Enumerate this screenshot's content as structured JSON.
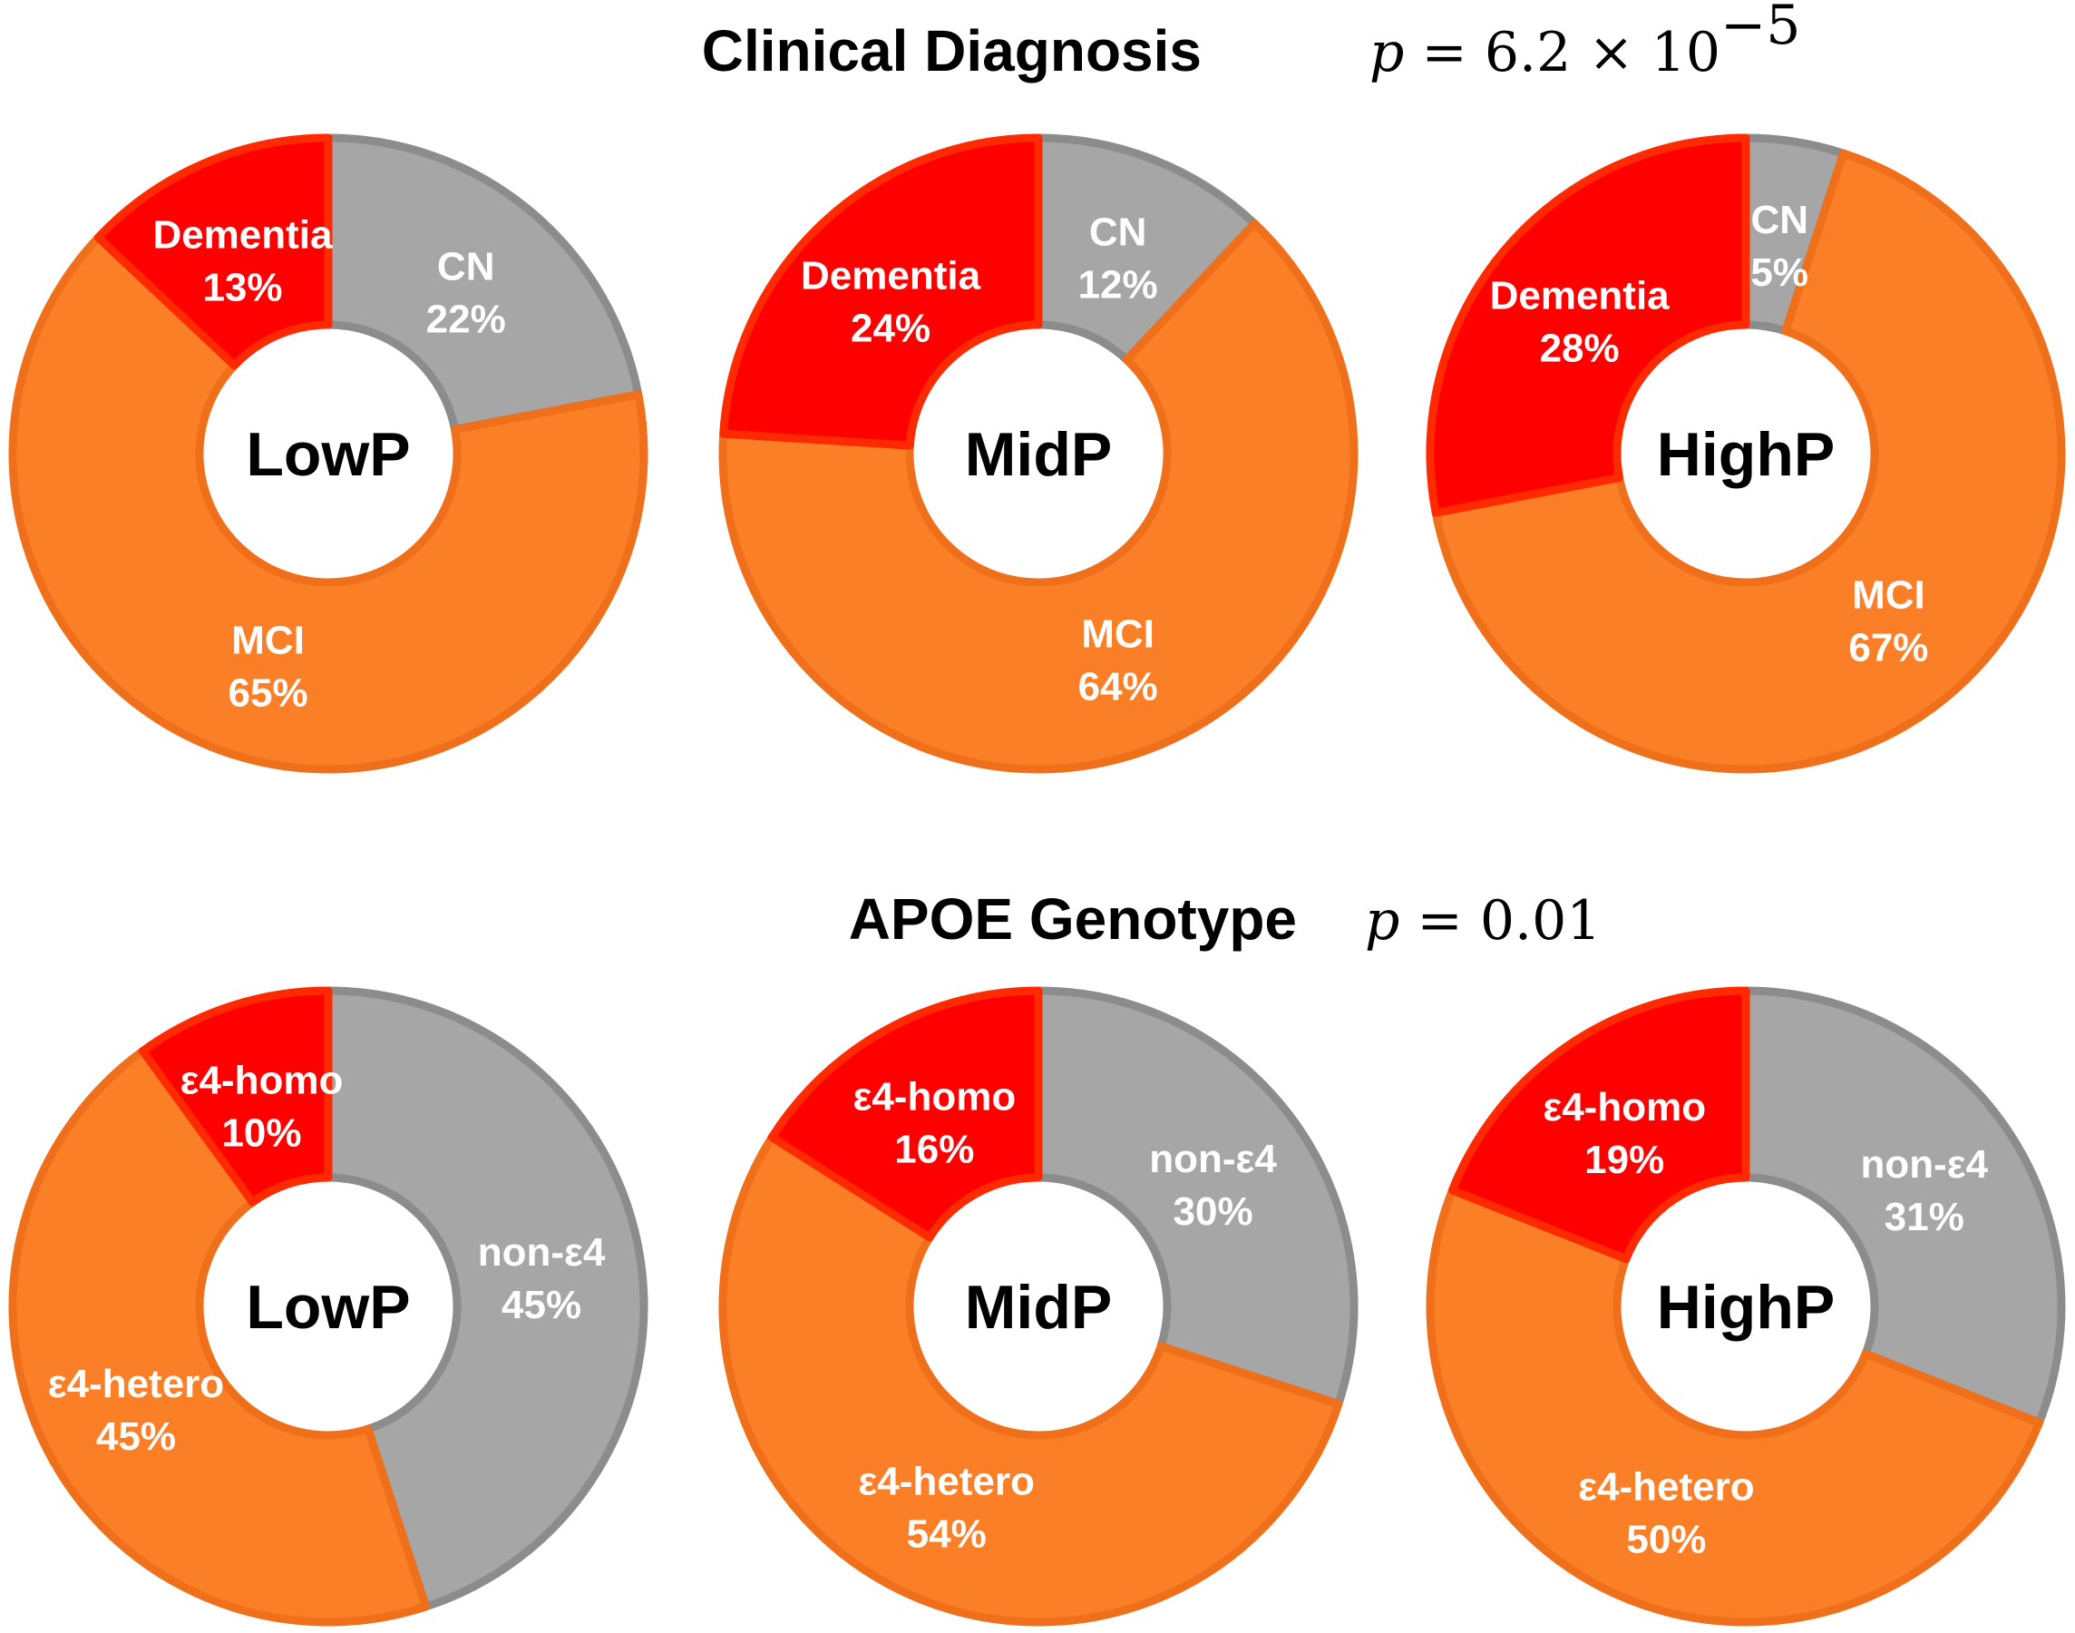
{
  "colors": {
    "CN": "#a6a6a6",
    "CN_edge": "#8c8c8c",
    "MCI": "#fb7f27",
    "MCI_edge": "#ef6f1a",
    "Dementia": "#ff0000",
    "Dementia_edge": "#ff2a00"
  },
  "rows": [
    {
      "title": "Clinical Diagnosis",
      "p_symbol": "p",
      "p_rest": " = 6.2 × 10",
      "p_exponent": "−5"
    },
    {
      "title": "APOE Genotype",
      "p_symbol": "p",
      "p_rest": " = 0.01",
      "p_exponent": ""
    }
  ],
  "chart_data": [
    {
      "type": "pie",
      "variant": "donut",
      "group": "Clinical Diagnosis",
      "center_label": "LowP",
      "slices": [
        {
          "name": "CN",
          "value": 22,
          "label": "CN",
          "pct": "22%",
          "color_key": "CN"
        },
        {
          "name": "MCI",
          "value": 65,
          "label": "MCI",
          "pct": "65%",
          "color_key": "MCI"
        },
        {
          "name": "Dementia",
          "value": 13,
          "label": "Dementia",
          "pct": "13%",
          "color_key": "Dementia"
        }
      ]
    },
    {
      "type": "pie",
      "variant": "donut",
      "group": "Clinical Diagnosis",
      "center_label": "MidP",
      "slices": [
        {
          "name": "CN",
          "value": 12,
          "label": "CN",
          "pct": "12%",
          "color_key": "CN"
        },
        {
          "name": "MCI",
          "value": 64,
          "label": "MCI",
          "pct": "64%",
          "color_key": "MCI"
        },
        {
          "name": "Dementia",
          "value": 24,
          "label": "Dementia",
          "pct": "24%",
          "color_key": "Dementia"
        }
      ]
    },
    {
      "type": "pie",
      "variant": "donut",
      "group": "Clinical Diagnosis",
      "center_label": "HighP",
      "slices": [
        {
          "name": "CN",
          "value": 5,
          "label": "CN",
          "pct": "5%",
          "color_key": "CN"
        },
        {
          "name": "MCI",
          "value": 67,
          "label": "MCI",
          "pct": "67%",
          "color_key": "MCI"
        },
        {
          "name": "Dementia",
          "value": 28,
          "label": "Dementia",
          "pct": "28%",
          "color_key": "Dementia"
        }
      ]
    },
    {
      "type": "pie",
      "variant": "donut",
      "group": "APOE Genotype",
      "center_label": "LowP",
      "slices": [
        {
          "name": "non-ε4",
          "value": 45,
          "label": "non-ε4",
          "pct": "45%",
          "color_key": "CN"
        },
        {
          "name": "ε4-hetero",
          "value": 45,
          "label": "ε4-hetero",
          "pct": "45%",
          "color_key": "MCI"
        },
        {
          "name": "ε4-homo",
          "value": 10,
          "label": "ε4-homo",
          "pct": "10%",
          "color_key": "Dementia"
        }
      ]
    },
    {
      "type": "pie",
      "variant": "donut",
      "group": "APOE Genotype",
      "center_label": "MidP",
      "slices": [
        {
          "name": "non-ε4",
          "value": 30,
          "label": "non-ε4",
          "pct": "30%",
          "color_key": "CN"
        },
        {
          "name": "ε4-hetero",
          "value": 54,
          "label": "ε4-hetero",
          "pct": "54%",
          "color_key": "MCI"
        },
        {
          "name": "ε4-homo",
          "value": 16,
          "label": "ε4-homo",
          "pct": "16%",
          "color_key": "Dementia"
        }
      ]
    },
    {
      "type": "pie",
      "variant": "donut",
      "group": "APOE Genotype",
      "center_label": "HighP",
      "slices": [
        {
          "name": "non-ε4",
          "value": 31,
          "label": "non-ε4",
          "pct": "31%",
          "color_key": "CN"
        },
        {
          "name": "ε4-hetero",
          "value": 50,
          "label": "ε4-hetero",
          "pct": "50%",
          "color_key": "MCI"
        },
        {
          "name": "ε4-homo",
          "value": 19,
          "label": "ε4-homo",
          "pct": "19%",
          "color_key": "Dementia"
        }
      ]
    }
  ]
}
